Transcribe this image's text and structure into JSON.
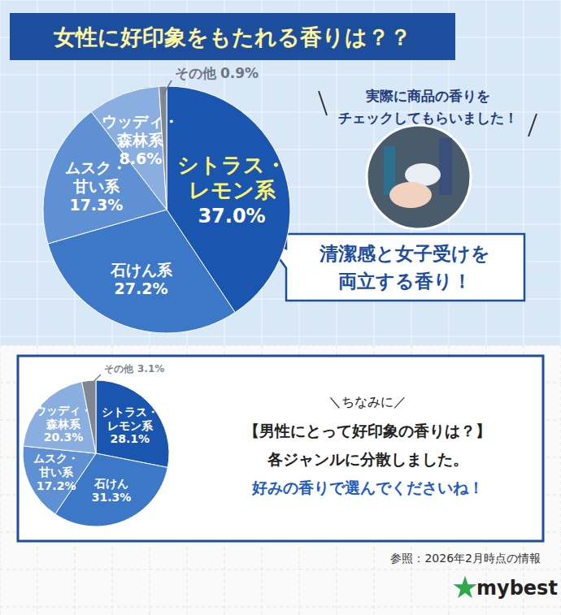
{
  "chart_data": [
    {
      "type": "pie",
      "title": "女性に好印象をもたれる香りは？？",
      "categories": [
        "シトラス・\nレモン系",
        "石けん系",
        "ムスク・\n甘い系",
        "ウッディ・\n森林系",
        "その他"
      ],
      "values": [
        37.0,
        27.2,
        17.3,
        8.6,
        0.9
      ],
      "value_labels": [
        "37.0%",
        "27.2%",
        "17.3%",
        "8.6%",
        "0.9%"
      ],
      "colors": [
        "#1a56b0",
        "#3d78c8",
        "#5f90d4",
        "#8aaedf",
        "#7f8793"
      ],
      "data_labels": true
    },
    {
      "type": "pie",
      "title": "【男性にとって好印象の香りは？】",
      "categories": [
        "シトラス・\nレモン系",
        "石けん",
        "ムスク・\n甘い系",
        "ウッディ・\n森林系",
        "その他"
      ],
      "values": [
        28.1,
        31.3,
        17.2,
        20.3,
        3.1
      ],
      "value_labels": [
        "28.1%",
        "31.3%",
        "17.2%",
        "20.3%",
        "3.1%"
      ],
      "colors": [
        "#1a56b0",
        "#3d78c8",
        "#5f90d4",
        "#8aaedf",
        "#7f8793"
      ],
      "data_labels": true
    }
  ],
  "page": {
    "note": [
      "実際に商品の香りを",
      "チェックしてもらいました！"
    ],
    "callout": [
      "清潔感と女子受けを",
      "両立する香り！"
    ],
    "aside": "＼ちなみに／",
    "body": [
      "各ジャンルに分散しました。",
      "好みの香りで選んでくださいね！"
    ],
    "source": "参照：2026年2月時点の情報",
    "brand": "mybest"
  }
}
